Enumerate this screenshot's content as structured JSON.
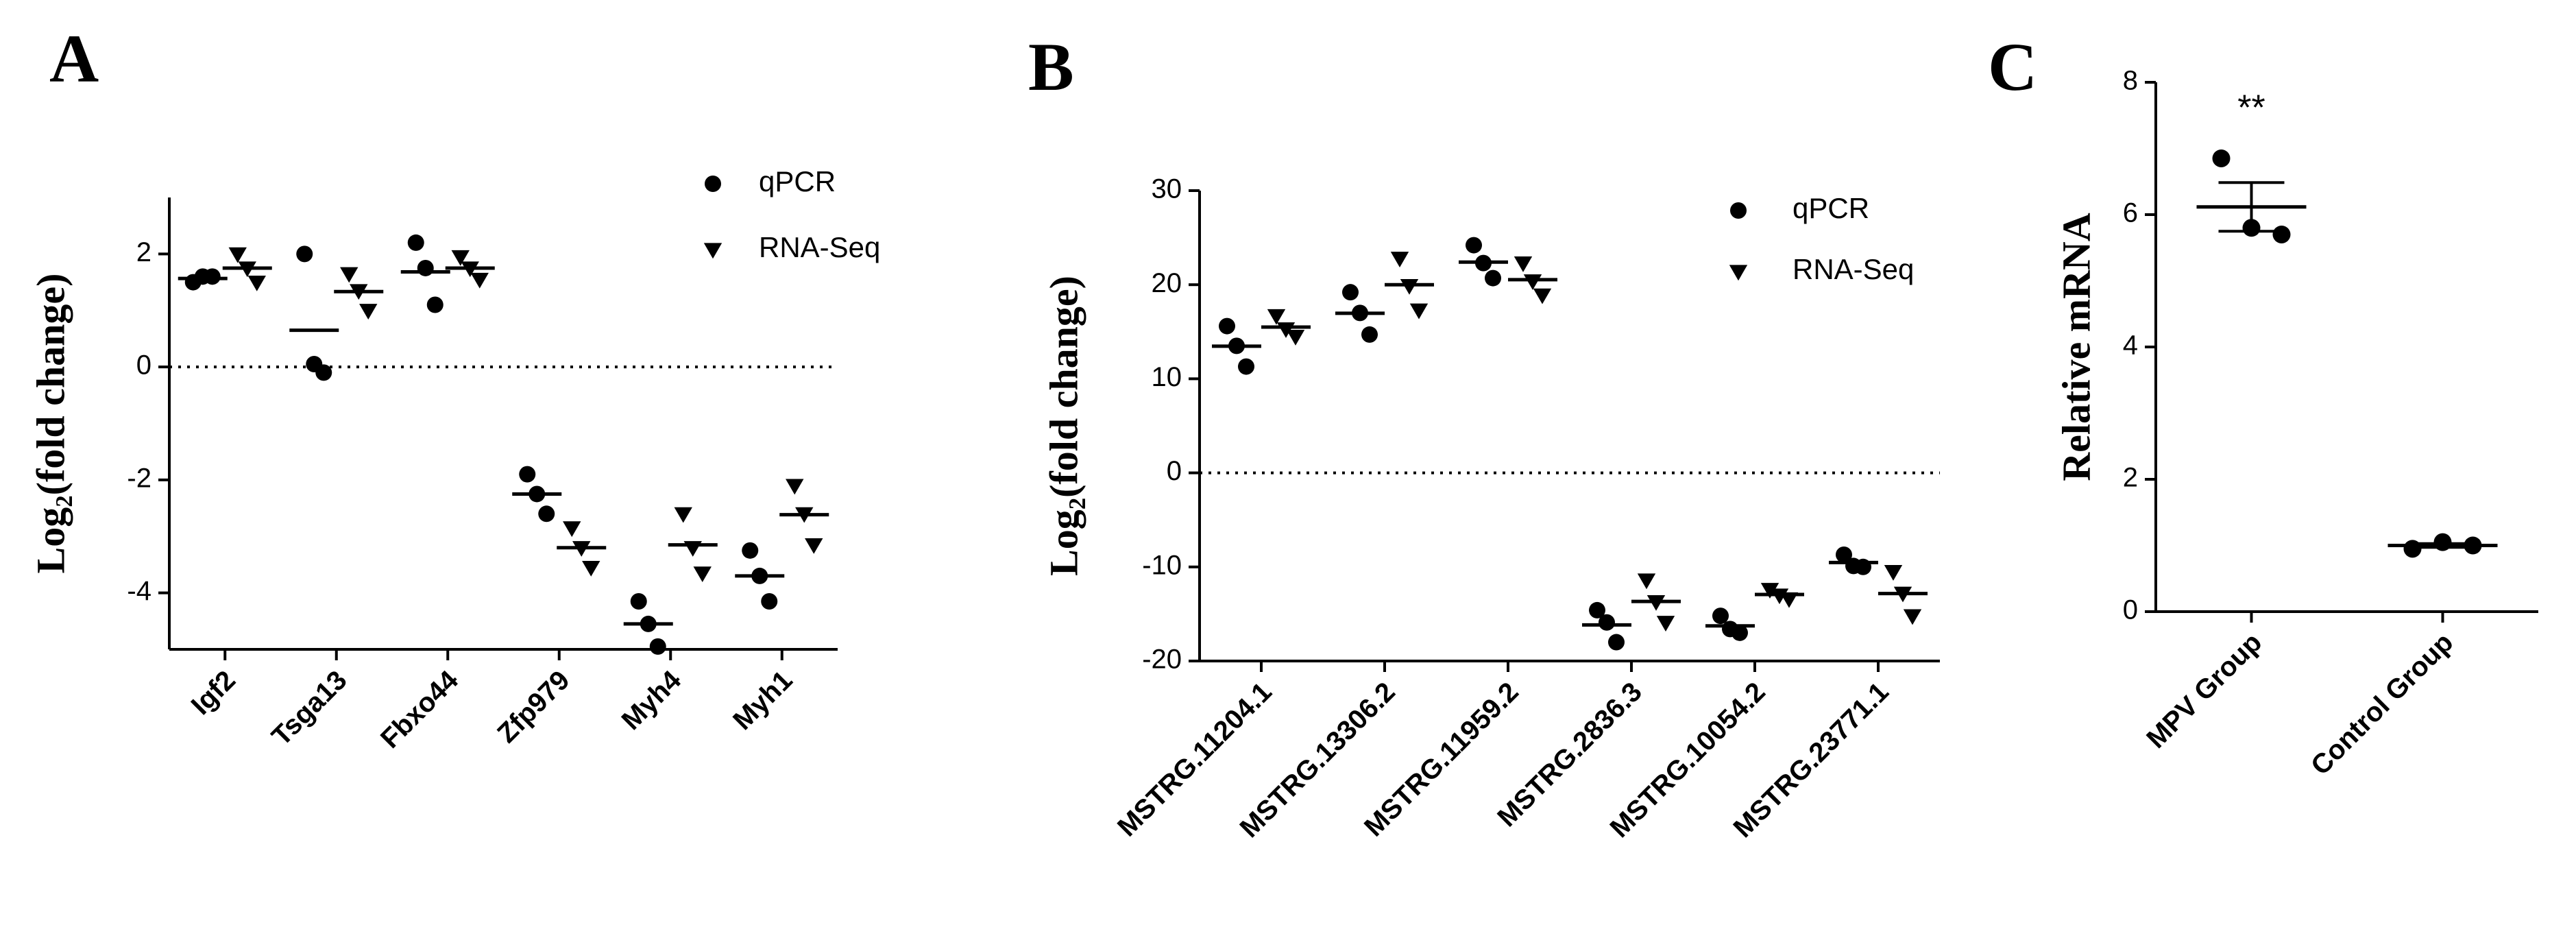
{
  "chart_data": [
    {
      "type": "dotplot",
      "panel_label": "A",
      "y_label": "Log₂(fold change)",
      "categories": [
        "Igf2",
        "Tsga13",
        "Fbxo44",
        "Zfp979",
        "Myh4",
        "Myh1"
      ],
      "series": [
        {
          "name": "qPCR",
          "marker": "circle",
          "color": "#000000",
          "values": [
            [
              1.5,
              1.6,
              1.6
            ],
            [
              2.0,
              0.05,
              -0.1
            ],
            [
              2.2,
              1.75,
              1.1
            ],
            [
              -1.9,
              -2.25,
              -2.6
            ],
            [
              -4.15,
              -4.55,
              -4.95
            ],
            [
              -3.25,
              -3.7,
              -4.15
            ]
          ]
        },
        {
          "name": "RNA-Seq",
          "marker": "triangle-down",
          "color": "#000000",
          "values": [
            [
              2.0,
              1.75,
              1.5
            ],
            [
              1.65,
              1.35,
              1.0
            ],
            [
              1.95,
              1.75,
              1.55
            ],
            [
              -2.85,
              -3.2,
              -3.55
            ],
            [
              -2.6,
              -3.2,
              -3.65
            ],
            [
              -2.1,
              -2.6,
              -3.15
            ]
          ]
        }
      ],
      "ylim": [
        -5,
        3
      ],
      "yticks": [
        -4,
        -2,
        0,
        2
      ],
      "hline": 0,
      "legend": "upper right"
    },
    {
      "type": "dotplot",
      "panel_label": "B",
      "y_label": "Log₂(fold change)",
      "categories": [
        "MSTRG.11204.1",
        "MSTRG.13306.2",
        "MSTRG.11959.2",
        "MSTRG.2836.3",
        "MSTRG.10054.2",
        "MSTRG.23771.1"
      ],
      "series": [
        {
          "name": "qPCR",
          "marker": "circle",
          "color": "#000000",
          "values": [
            [
              15.6,
              13.5,
              11.3
            ],
            [
              19.2,
              17,
              14.7
            ],
            [
              24.2,
              22.3,
              20.7
            ],
            [
              -14.6,
              -15.9,
              -18
            ],
            [
              -15.2,
              -16.6,
              -17
            ],
            [
              -8.7,
              -9.9,
              -10
            ]
          ]
        },
        {
          "name": "RNA-Seq",
          "marker": "triangle-down",
          "color": "#000000",
          "values": [
            [
              16.7,
              15.3,
              14.5
            ],
            [
              22.8,
              19.9,
              17.3
            ],
            [
              22.3,
              20.4,
              18.9
            ],
            [
              -11.4,
              -13.7,
              -15.9
            ],
            [
              -12.4,
              -13,
              -13.4
            ],
            [
              -10.5,
              -12.8,
              -15.2
            ]
          ]
        }
      ],
      "ylim": [
        -20,
        30
      ],
      "yticks": [
        -20,
        -10,
        0,
        10,
        20,
        30
      ],
      "hline": 0,
      "legend": "upper right"
    },
    {
      "type": "dotplot",
      "panel_label": "C",
      "y_label": "Relative mRNA",
      "categories": [
        "MPV Group",
        "Control Group"
      ],
      "series": [
        {
          "marker": "circle",
          "color": "#000000",
          "values": [
            [
              6.85,
              5.8,
              5.7
            ],
            [
              0.95,
              1.05,
              1.0
            ]
          ]
        }
      ],
      "error_bar": "sem",
      "annotations": [
        {
          "text": "**",
          "category": "MPV Group"
        }
      ],
      "ylim": [
        0,
        8
      ],
      "yticks": [
        0,
        2,
        4,
        6,
        8
      ]
    }
  ]
}
